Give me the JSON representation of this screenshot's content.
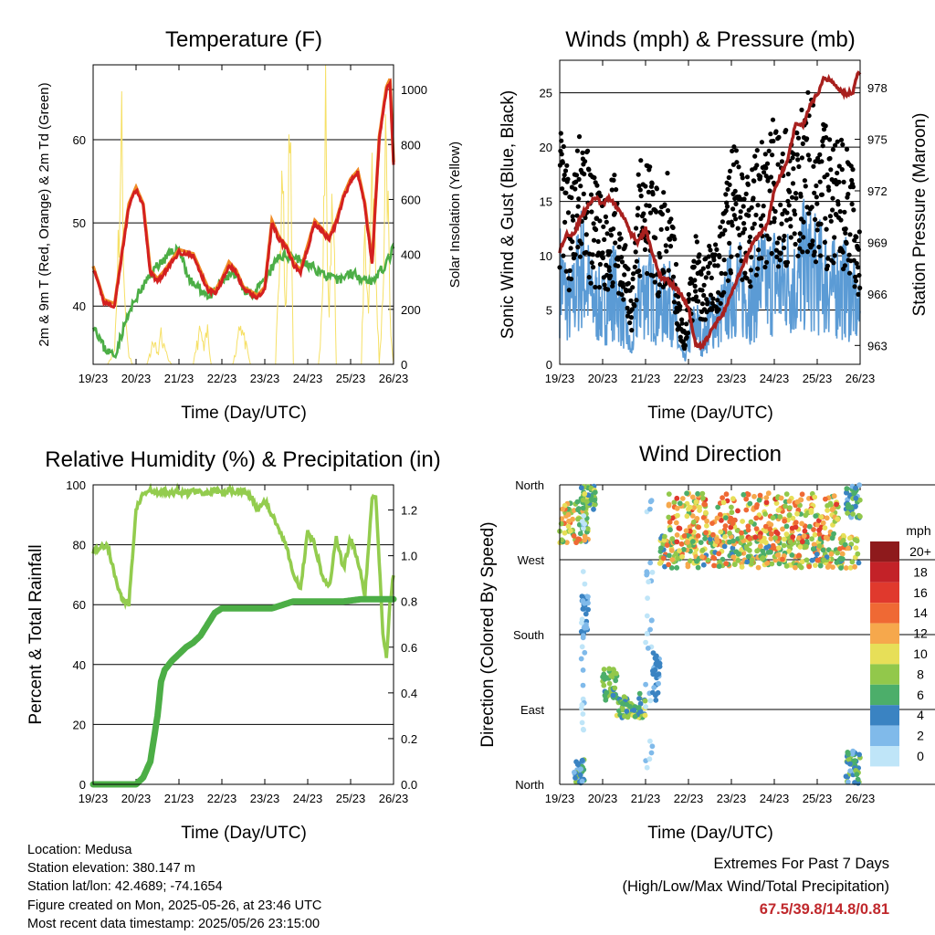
{
  "panels": {
    "temperature": {
      "title": "Temperature (F)",
      "ylabel_left": "2m & 9m T (Red, Orange) & 2m Td (Green)",
      "ylabel_right": "Solar Insolation (Yellow)",
      "xlabel": "Time (Day/UTC)"
    },
    "winds": {
      "title": "Winds (mph) & Pressure (mb)",
      "ylabel_left": "Sonic Wind & Gust (Blue, Black)",
      "ylabel_right": "Station Pressure (Maroon)",
      "xlabel": "Time (Day/UTC)"
    },
    "humidity": {
      "title": "Relative Humidity (%) & Precipitation (in)",
      "ylabel_left": "Percent & Total Rainfall",
      "xlabel": "Time (Day/UTC)"
    },
    "direction": {
      "title": "Wind Direction",
      "ylabel_left": "Direction (Colored By Speed)",
      "xlabel": "Time (Day/UTC)",
      "colorbar_title": "mph"
    }
  },
  "info": {
    "location": "Location: Medusa",
    "elevation": "Station elevation: 380.147 m",
    "latlon": "Station lat/lon: 42.4689; -74.1654",
    "created": "Figure created on Mon, 2025-05-26, at 23:46 UTC",
    "latest": "Most recent data timestamp: 2025/05/26 23:15:00"
  },
  "extremes": {
    "line1": "Extremes For Past 7 Days",
    "line2": "(High/Low/Max Wind/Total Precipitation)",
    "values": "67.5/39.8/14.8/0.81"
  },
  "colors": {
    "temp_2m": "#d42020",
    "temp_9m": "#f08a24",
    "dewpoint": "#4cae46",
    "solar": "#f6e066",
    "wind": "#5b9bd5",
    "gust": "#000000",
    "pressure": "#a8201e",
    "rh": "#93cc4e",
    "precip": "#4cae46"
  },
  "chart_data": [
    {
      "type": "line",
      "id": "temperature",
      "x_ticks": [
        "19/23",
        "20/23",
        "21/23",
        "22/23",
        "23/23",
        "24/23",
        "25/23",
        "26/23"
      ],
      "x_unit": "hours since 19/23 UTC",
      "y_ticks_left": [
        "40",
        "50",
        "60"
      ],
      "ylim_left": [
        33,
        69
      ],
      "y_ticks_right": [
        "0",
        "200",
        "400",
        "600",
        "800",
        "1000"
      ],
      "ylim_right": [
        0,
        1090
      ],
      "grid": true,
      "series": [
        {
          "name": "2m T",
          "axis": "left",
          "x": [
            0,
            6,
            12,
            16,
            20,
            24,
            28,
            32,
            36,
            40,
            48,
            56,
            60,
            64,
            68,
            72,
            76,
            80,
            84,
            88,
            92,
            96,
            100,
            104,
            108,
            112,
            116,
            120,
            124,
            128,
            132,
            136,
            140,
            144,
            148,
            152,
            156,
            160,
            164,
            166,
            168
          ],
          "y": [
            44.5,
            40.5,
            40,
            46,
            52,
            54,
            52,
            44,
            43,
            44,
            46.5,
            46,
            44,
            42,
            41.5,
            43,
            45,
            44,
            42,
            41.5,
            41,
            42,
            50,
            48,
            47,
            45,
            44,
            47,
            50,
            49,
            48,
            50,
            53,
            55,
            56,
            52,
            45,
            60,
            66,
            67,
            57
          ]
        },
        {
          "name": "9m T",
          "axis": "left",
          "x": [
            0,
            12,
            20,
            24,
            36,
            48,
            60,
            72,
            84,
            96,
            104,
            120,
            140,
            152,
            160,
            164,
            166,
            168
          ],
          "y": [
            44.6,
            40.2,
            52.2,
            54.1,
            43.2,
            46.6,
            44.2,
            43.2,
            41.7,
            42.2,
            48.2,
            47.2,
            53.2,
            52.2,
            60.5,
            66.5,
            67.2,
            57.2
          ]
        },
        {
          "name": "2m Td",
          "axis": "left",
          "x": [
            0,
            6,
            12,
            18,
            24,
            30,
            36,
            42,
            48,
            54,
            60,
            66,
            72,
            78,
            84,
            90,
            96,
            104,
            112,
            120,
            128,
            136,
            144,
            150,
            156,
            160,
            164,
            168
          ],
          "y": [
            38,
            35,
            34,
            38,
            41,
            43,
            45,
            46,
            47,
            43,
            42,
            41,
            43,
            44,
            42,
            41.5,
            43,
            46,
            46,
            45,
            44,
            43,
            44,
            43.5,
            43,
            44,
            45,
            47
          ]
        },
        {
          "name": "Solar",
          "axis": "right",
          "x": [
            0,
            8,
            12,
            14,
            16,
            18,
            20,
            22,
            24,
            30,
            34,
            36,
            38,
            40,
            42,
            44,
            48,
            56,
            58,
            60,
            62,
            64,
            66,
            72,
            78,
            80,
            82,
            84,
            86,
            88,
            96,
            102,
            104,
            106,
            108,
            110,
            112,
            120,
            126,
            128,
            130,
            132,
            134,
            136,
            144,
            150,
            152,
            154,
            156,
            158,
            160,
            162,
            164,
            166,
            168
          ],
          "y": [
            0,
            0,
            60,
            500,
            950,
            200,
            40,
            0,
            0,
            0,
            100,
            40,
            120,
            60,
            20,
            0,
            0,
            0,
            80,
            140,
            60,
            140,
            0,
            0,
            0,
            60,
            200,
            120,
            60,
            0,
            0,
            0,
            400,
            700,
            200,
            1000,
            0,
            0,
            0,
            200,
            1020,
            300,
            700,
            0,
            0,
            0,
            600,
            200,
            900,
            400,
            0,
            300,
            1000,
            200,
            0
          ]
        }
      ]
    },
    {
      "type": "line",
      "id": "winds",
      "x_ticks": [
        "19/23",
        "20/23",
        "21/23",
        "22/23",
        "23/23",
        "24/23",
        "25/23",
        "26/23"
      ],
      "x_unit": "hours since 19/23 UTC",
      "y_ticks_left": [
        "0",
        "5",
        "10",
        "15",
        "20",
        "25"
      ],
      "ylim_left": [
        0,
        28
      ],
      "y_ticks_right": [
        "963",
        "966",
        "969",
        "972",
        "975",
        "978"
      ],
      "ylim_right": [
        961.9,
        979.6
      ],
      "grid": true,
      "series": [
        {
          "name": "Pressure",
          "axis": "right",
          "x": [
            0,
            4,
            8,
            12,
            16,
            20,
            24,
            28,
            32,
            36,
            40,
            44,
            48,
            52,
            56,
            60,
            64,
            68,
            72,
            76,
            80,
            84,
            88,
            92,
            96,
            100,
            104,
            108,
            112,
            116,
            120,
            124,
            128,
            132,
            136,
            140,
            144,
            148,
            152,
            156,
            160,
            164,
            166,
            168
          ],
          "y": [
            968.5,
            969.5,
            969.5,
            970.5,
            971.2,
            971.6,
            971.2,
            971.6,
            971,
            970.5,
            969.5,
            969,
            969.8,
            968.3,
            967,
            966.8,
            966.4,
            966,
            965.2,
            963,
            963,
            963.7,
            964.4,
            965,
            966,
            967,
            968,
            969,
            969.5,
            970,
            972,
            973,
            974,
            976,
            975.8,
            977,
            977.6,
            978.6,
            978.4,
            978,
            977.6,
            977.8,
            978.6,
            979
          ]
        },
        {
          "name": "Wind",
          "axis": "left",
          "x": [
            0,
            6,
            12,
            18,
            24,
            30,
            36,
            40,
            44,
            48,
            52,
            56,
            60,
            64,
            66,
            68,
            70,
            72,
            76,
            80,
            84,
            88,
            92,
            96,
            100,
            104,
            108,
            112,
            116,
            120,
            124,
            128,
            132,
            136,
            140,
            144,
            148,
            152,
            156,
            160,
            164,
            168
          ],
          "y": [
            8,
            5,
            9,
            6,
            5,
            7,
            4,
            1,
            6,
            7,
            6,
            5,
            6,
            5,
            2,
            1,
            0.5,
            2,
            4,
            2,
            4,
            4,
            5,
            7,
            7,
            6,
            6,
            8,
            7,
            8,
            7,
            8,
            7,
            9,
            9,
            8,
            8,
            7,
            7,
            7,
            6,
            4
          ]
        },
        {
          "name": "Gust",
          "axis": "left",
          "x": [
            0,
            6,
            12,
            18,
            24,
            30,
            36,
            40,
            44,
            48,
            52,
            56,
            60,
            64,
            66,
            68,
            70,
            72,
            76,
            80,
            84,
            88,
            92,
            96,
            100,
            104,
            108,
            112,
            116,
            120,
            124,
            128,
            132,
            136,
            140,
            144,
            148,
            152,
            156,
            160,
            164,
            168
          ],
          "y": [
            15,
            11,
            15,
            12,
            10,
            12,
            9,
            4,
            12,
            14,
            12,
            10,
            12,
            9,
            5,
            3,
            2,
            5,
            8,
            6,
            8,
            8,
            10,
            14,
            13,
            12,
            12,
            15,
            14,
            16,
            14,
            15,
            14,
            17,
            17,
            15,
            15,
            14,
            14,
            14,
            12,
            8
          ]
        }
      ]
    },
    {
      "type": "line",
      "id": "humidity",
      "x_ticks": [
        "19/23",
        "20/23",
        "21/23",
        "22/23",
        "23/23",
        "24/23",
        "25/23",
        "26/23"
      ],
      "x_unit": "hours since 19/23 UTC",
      "y_ticks_left": [
        "0",
        "20",
        "40",
        "60",
        "80",
        "100"
      ],
      "ylim_left": [
        0,
        100
      ],
      "y_ticks_right": [
        "0.0",
        "0.2",
        "0.4",
        "0.6",
        "0.8",
        "1.0",
        "1.2"
      ],
      "ylim_right": [
        0,
        1.31
      ],
      "grid": true,
      "series": [
        {
          "name": "RH",
          "axis": "left",
          "x": [
            0,
            4,
            8,
            12,
            16,
            20,
            24,
            28,
            32,
            36,
            40,
            44,
            48,
            52,
            56,
            60,
            64,
            68,
            72,
            76,
            80,
            84,
            88,
            92,
            96,
            100,
            104,
            108,
            112,
            116,
            120,
            124,
            128,
            132,
            136,
            140,
            144,
            148,
            152,
            156,
            158,
            160,
            162,
            164,
            166,
            168
          ],
          "y": [
            78,
            79,
            80,
            70,
            62,
            60,
            92,
            97,
            98,
            97,
            98,
            97,
            98,
            97,
            98,
            98,
            97,
            98,
            97,
            98,
            98,
            98,
            96,
            92,
            95,
            90,
            85,
            80,
            70,
            65,
            85,
            80,
            70,
            66,
            82,
            72,
            82,
            75,
            63,
            95,
            96,
            75,
            50,
            42,
            60,
            70
          ]
        },
        {
          "name": "Total Rainfall",
          "axis": "right",
          "x": [
            0,
            10,
            20,
            24,
            28,
            32,
            34,
            36,
            38,
            40,
            44,
            48,
            52,
            56,
            60,
            64,
            68,
            72,
            80,
            90,
            100,
            108,
            112,
            120,
            130,
            140,
            150,
            160,
            168
          ],
          "y": [
            0,
            0,
            0,
            0,
            0.03,
            0.1,
            0.2,
            0.3,
            0.45,
            0.5,
            0.54,
            0.57,
            0.6,
            0.62,
            0.65,
            0.7,
            0.75,
            0.77,
            0.77,
            0.77,
            0.77,
            0.79,
            0.8,
            0.8,
            0.8,
            0.8,
            0.81,
            0.81,
            0.81
          ]
        }
      ]
    },
    {
      "type": "scatter",
      "id": "direction",
      "x_ticks": [
        "19/23",
        "20/23",
        "21/23",
        "22/23",
        "23/23",
        "24/23",
        "25/23",
        "26/23"
      ],
      "x_unit": "hours since 19/23 UTC",
      "y_ticks": [
        "North",
        "East",
        "South",
        "West",
        "North"
      ],
      "y_unit": "degrees clockwise, North=0 at bottom and North=360 at top",
      "ylim": [
        0,
        360
      ],
      "colorbar": {
        "title": "mph",
        "labels": [
          "20+",
          "18",
          "16",
          "14",
          "12",
          "10",
          "8",
          "6",
          "4",
          "2",
          "0"
        ],
        "colors": [
          "#8e1a1c",
          "#c32228",
          "#e0392d",
          "#ef6934",
          "#f6a84c",
          "#e7df58",
          "#92c84b",
          "#4cae6a",
          "#3a83c2",
          "#80baea",
          "#bfe5f8"
        ]
      },
      "clusters": [
        {
          "x_range": [
            0,
            16
          ],
          "dir_range": [
            290,
            340
          ],
          "speed_range": [
            4,
            14
          ]
        },
        {
          "x_range": [
            12,
            20
          ],
          "dir_range": [
            330,
            360
          ],
          "speed_range": [
            4,
            10
          ]
        },
        {
          "x_range": [
            8,
            14
          ],
          "dir_range": [
            0,
            30
          ],
          "speed_range": [
            2,
            8
          ]
        },
        {
          "x_range": [
            12,
            16
          ],
          "dir_range": [
            180,
            230
          ],
          "speed_range": [
            1,
            5
          ]
        },
        {
          "x_range": [
            12,
            14
          ],
          "dir_range": [
            0,
            360
          ],
          "speed_range": [
            0,
            2
          ]
        },
        {
          "x_range": [
            24,
            32
          ],
          "dir_range": [
            100,
            140
          ],
          "speed_range": [
            4,
            9
          ]
        },
        {
          "x_range": [
            32,
            48
          ],
          "dir_range": [
            80,
            110
          ],
          "speed_range": [
            4,
            10
          ]
        },
        {
          "x_range": [
            48,
            52
          ],
          "dir_range": [
            0,
            360
          ],
          "speed_range": [
            0,
            2
          ]
        },
        {
          "x_range": [
            52,
            56
          ],
          "dir_range": [
            100,
            160
          ],
          "speed_range": [
            2,
            5
          ]
        },
        {
          "x_range": [
            56,
            168
          ],
          "dir_range": [
            260,
            300
          ],
          "speed_range": [
            4,
            14
          ]
        },
        {
          "x_range": [
            60,
            156
          ],
          "dir_range": [
            290,
            350
          ],
          "speed_range": [
            6,
            16
          ]
        },
        {
          "x_range": [
            160,
            168
          ],
          "dir_range": [
            0,
            40
          ],
          "speed_range": [
            2,
            8
          ]
        },
        {
          "x_range": [
            160,
            168
          ],
          "dir_range": [
            320,
            360
          ],
          "speed_range": [
            2,
            8
          ]
        }
      ]
    }
  ]
}
